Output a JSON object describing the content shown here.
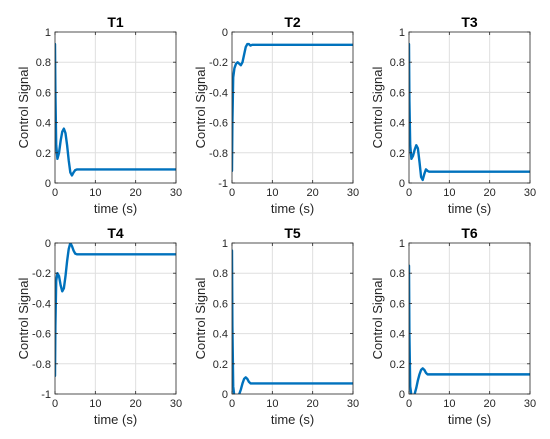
{
  "chart_data": [
    {
      "type": "line",
      "title": "T1",
      "xlabel": "time (s)",
      "ylabel": "Control Signal",
      "xlim": [
        0,
        30
      ],
      "ylim": [
        0,
        1
      ],
      "xticks": [
        "0",
        "10",
        "20",
        "30"
      ],
      "yticks": [
        "0",
        "0.2",
        "0.4",
        "0.6",
        "0.8",
        "1"
      ],
      "grid": true,
      "color": "#0072BD",
      "series": [
        {
          "x": [
            0,
            0.1,
            0.3,
            0.6,
            1.0,
            1.4,
            1.8,
            2.2,
            2.6,
            3.0,
            3.4,
            3.8,
            4.2,
            4.6,
            5.0,
            5.5,
            6.0,
            30
          ],
          "y": [
            0.92,
            0.6,
            0.25,
            0.16,
            0.2,
            0.28,
            0.34,
            0.36,
            0.33,
            0.25,
            0.15,
            0.07,
            0.05,
            0.07,
            0.085,
            0.09,
            0.09,
            0.09
          ]
        }
      ]
    },
    {
      "type": "line",
      "title": "T2",
      "xlabel": "time (s)",
      "ylabel": "Control Signal",
      "xlim": [
        0,
        30
      ],
      "ylim": [
        -1,
        0
      ],
      "xticks": [
        "0",
        "10",
        "20",
        "30"
      ],
      "yticks": [
        "-1",
        "-0.8",
        "-0.6",
        "-0.4",
        "-0.2",
        "0"
      ],
      "grid": true,
      "color": "#0072BD",
      "series": [
        {
          "x": [
            0,
            0.1,
            0.3,
            0.6,
            1.0,
            1.4,
            1.8,
            2.2,
            2.6,
            3.0,
            3.4,
            3.8,
            4.2,
            4.6,
            5.0,
            5.5,
            6.0,
            30
          ],
          "y": [
            -0.92,
            -0.6,
            -0.3,
            -0.24,
            -0.21,
            -0.2,
            -0.21,
            -0.22,
            -0.2,
            -0.15,
            -0.1,
            -0.08,
            -0.08,
            -0.09,
            -0.085,
            -0.085,
            -0.085,
            -0.085
          ]
        }
      ]
    },
    {
      "type": "line",
      "title": "T3",
      "xlabel": "time (s)",
      "ylabel": "Control Signal",
      "xlim": [
        0,
        30
      ],
      "ylim": [
        0,
        1
      ],
      "xticks": [
        "0",
        "10",
        "20",
        "30"
      ],
      "yticks": [
        "0",
        "0.2",
        "0.4",
        "0.6",
        "0.8",
        "1"
      ],
      "grid": true,
      "color": "#0072BD",
      "series": [
        {
          "x": [
            0,
            0.1,
            0.3,
            0.6,
            1.0,
            1.4,
            1.8,
            2.2,
            2.6,
            3.0,
            3.4,
            3.8,
            4.2,
            4.6,
            5.0,
            5.5,
            6.0,
            30
          ],
          "y": [
            0.92,
            0.55,
            0.25,
            0.16,
            0.18,
            0.22,
            0.25,
            0.23,
            0.14,
            0.04,
            0.02,
            0.06,
            0.09,
            0.08,
            0.075,
            0.075,
            0.075,
            0.075
          ]
        }
      ]
    },
    {
      "type": "line",
      "title": "T4",
      "xlabel": "time (s)",
      "ylabel": "Control Signal",
      "xlim": [
        0,
        30
      ],
      "ylim": [
        -1,
        0
      ],
      "xticks": [
        "0",
        "10",
        "20",
        "30"
      ],
      "yticks": [
        "-1",
        "-0.8",
        "-0.6",
        "-0.4",
        "-0.2",
        "0"
      ],
      "grid": true,
      "color": "#0072BD",
      "series": [
        {
          "x": [
            0,
            0.1,
            0.3,
            0.6,
            1.0,
            1.4,
            1.8,
            2.2,
            2.6,
            3.0,
            3.4,
            3.8,
            4.2,
            4.6,
            5.0,
            5.5,
            6.0,
            30
          ],
          "y": [
            -0.88,
            -0.55,
            -0.25,
            -0.2,
            -0.22,
            -0.28,
            -0.32,
            -0.3,
            -0.22,
            -0.12,
            -0.04,
            0,
            -0.02,
            -0.05,
            -0.07,
            -0.075,
            -0.075,
            -0.075
          ]
        }
      ]
    },
    {
      "type": "line",
      "title": "T5",
      "xlabel": "time (s)",
      "ylabel": "Control Signal",
      "xlim": [
        0,
        30
      ],
      "ylim": [
        0,
        1
      ],
      "xticks": [
        "0",
        "10",
        "20",
        "30"
      ],
      "yticks": [
        "0",
        "0.2",
        "0.4",
        "0.6",
        "0.8",
        "1"
      ],
      "grid": true,
      "color": "#0072BD",
      "series": [
        {
          "x": [
            0,
            0.1,
            0.3,
            0.6,
            1.0,
            1.4,
            1.8,
            2.2,
            2.6,
            3.0,
            3.4,
            3.8,
            4.2,
            4.6,
            5.0,
            5.5,
            6.0,
            30
          ],
          "y": [
            0.95,
            0.45,
            0.05,
            -0.02,
            -0.03,
            -0.02,
            0.0,
            0.03,
            0.07,
            0.1,
            0.11,
            0.1,
            0.08,
            0.07,
            0.07,
            0.07,
            0.07,
            0.07
          ]
        }
      ]
    },
    {
      "type": "line",
      "title": "T6",
      "xlabel": "time (s)",
      "ylabel": "Control Signal",
      "xlim": [
        0,
        30
      ],
      "ylim": [
        0,
        1
      ],
      "xticks": [
        "0",
        "10",
        "20",
        "30"
      ],
      "yticks": [
        "0",
        "0.2",
        "0.4",
        "0.6",
        "0.8",
        "1"
      ],
      "grid": true,
      "color": "#0072BD",
      "series": [
        {
          "x": [
            0,
            0.1,
            0.3,
            0.6,
            1.0,
            1.4,
            1.8,
            2.2,
            2.6,
            3.0,
            3.4,
            3.8,
            4.2,
            4.6,
            5.0,
            5.5,
            6.0,
            30
          ],
          "y": [
            0.85,
            0.4,
            0.05,
            -0.01,
            -0.02,
            0.0,
            0.04,
            0.09,
            0.13,
            0.16,
            0.17,
            0.16,
            0.14,
            0.13,
            0.13,
            0.13,
            0.13,
            0.13
          ]
        }
      ]
    }
  ]
}
